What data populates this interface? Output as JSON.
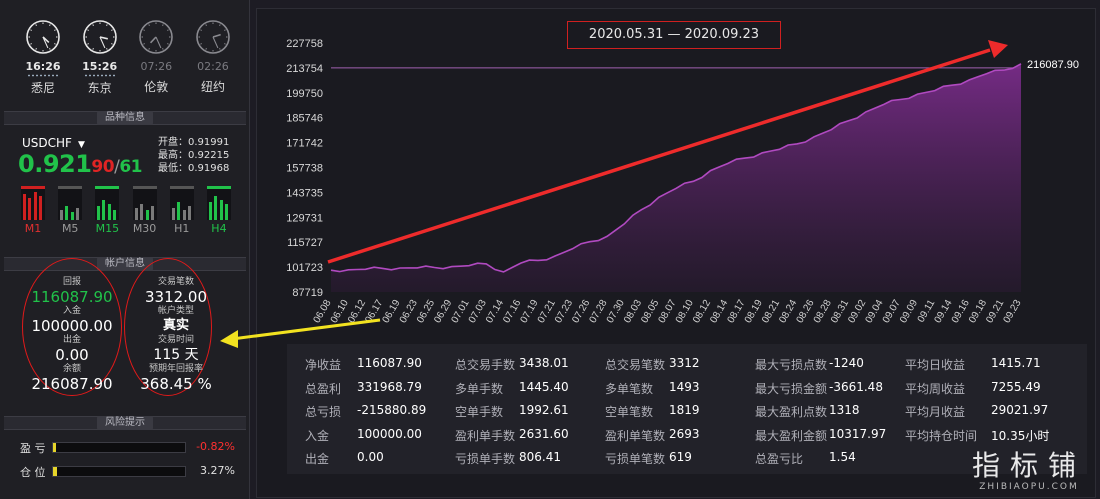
{
  "clocks": [
    {
      "time": "16:26",
      "city": "悉尼",
      "active": true,
      "hour": 4,
      "minute": 26
    },
    {
      "time": "15:26",
      "city": "东京",
      "active": true,
      "hour": 3,
      "minute": 26
    },
    {
      "time": "07:26",
      "city": "伦敦",
      "active": false,
      "hour": 7,
      "minute": 26
    },
    {
      "time": "02:26",
      "city": "纽约",
      "active": false,
      "hour": 2,
      "minute": 26
    }
  ],
  "instrument": {
    "section_title": "品种信息",
    "symbol": "USDCHF",
    "price_main": "0.921",
    "price_red": "90",
    "price_slash": "/",
    "price_green": "61",
    "open": "开盘：0.91991",
    "high": "最高：0.92215",
    "low": "最低：0.91968",
    "timeframes": [
      "M1",
      "M5",
      "M15",
      "M30",
      "H1",
      "H4"
    ]
  },
  "account": {
    "section_title": "帐户信息",
    "return_label": "回报",
    "return_value": "116087.90",
    "deposit_label": "入金",
    "deposit_value": "100000.00",
    "withdraw_label": "出金",
    "withdraw_value": "0.00",
    "balance_label": "余额",
    "balance_value": "216087.90",
    "trades_label": "交易笔数",
    "trades_value": "3312.00",
    "type_label": "帐户类型",
    "type_value": "真实",
    "time_label": "交易时间",
    "time_value": "115 天",
    "annual_label": "预期年回报率",
    "annual_value": "368.45 %"
  },
  "risk": {
    "section_title": "风险提示",
    "rows": [
      {
        "label": "盈 亏",
        "value": "-0.82%",
        "fill": 0.01,
        "color": "#ff3030"
      },
      {
        "label": "仓 位",
        "value": "3.27%",
        "fill": 0.033,
        "color": "#e0e0e0"
      }
    ]
  },
  "main": {
    "date_range": "2020.05.31 — 2020.09.23",
    "last_value_label": "216087.90",
    "stats": [
      [
        {
          "k": "净收益",
          "v": "116087.90"
        },
        {
          "k": "总盈利",
          "v": "331968.79"
        },
        {
          "k": "总亏损",
          "v": "-215880.89"
        },
        {
          "k": "入金",
          "v": "100000.00"
        },
        {
          "k": "出金",
          "v": "0.00"
        }
      ],
      [
        {
          "k": "总交易手数",
          "v": "3438.01"
        },
        {
          "k": "多单手数",
          "v": "1445.40"
        },
        {
          "k": "空单手数",
          "v": "1992.61"
        },
        {
          "k": "盈利单手数",
          "v": "2631.60"
        },
        {
          "k": "亏损单手数",
          "v": "806.41"
        }
      ],
      [
        {
          "k": "总交易笔数",
          "v": "3312"
        },
        {
          "k": "多单笔数",
          "v": "1493"
        },
        {
          "k": "空单笔数",
          "v": "1819"
        },
        {
          "k": "盈利单笔数",
          "v": "2693"
        },
        {
          "k": "亏损单笔数",
          "v": "619"
        }
      ],
      [
        {
          "k": "最大亏损点数",
          "v": "-1240"
        },
        {
          "k": "最大亏损金额",
          "v": "-3661.48"
        },
        {
          "k": "最大盈利点数",
          "v": "1318"
        },
        {
          "k": "最大盈利金额",
          "v": "10317.97"
        },
        {
          "k": "总盈亏比",
          "v": "1.54"
        }
      ],
      [
        {
          "k": "平均日收益",
          "v": "1415.71"
        },
        {
          "k": "平均周收益",
          "v": "7255.49"
        },
        {
          "k": "平均月收益",
          "v": "29021.97"
        },
        {
          "k": "平均持仓时间",
          "v": "10.35小时"
        }
      ]
    ]
  },
  "watermark": {
    "cn": "指标铺",
    "en": "ZHIBIAOPU.COM"
  },
  "chart_data": {
    "type": "area",
    "title": "",
    "xlabel": "",
    "ylabel": "",
    "ylim": [
      87719,
      227758
    ],
    "yticks": [
      87719,
      101723,
      115727,
      129731,
      143735,
      157738,
      171742,
      185746,
      199750,
      213754,
      227758
    ],
    "reference_line": 213754,
    "categories": [
      "06.08",
      "06.10",
      "06.12",
      "06.17",
      "06.19",
      "06.23",
      "06.25",
      "06.29",
      "07.01",
      "07.03",
      "07.14",
      "07.16",
      "07.19",
      "07.21",
      "07.23",
      "07.26",
      "07.28",
      "07.30",
      "08.03",
      "08.05",
      "08.07",
      "08.10",
      "08.12",
      "08.14",
      "08.17",
      "08.19",
      "08.21",
      "08.24",
      "08.26",
      "08.28",
      "08.31",
      "09.02",
      "09.04",
      "09.07",
      "09.09",
      "09.11",
      "09.14",
      "09.16",
      "09.18",
      "09.21",
      "09.23"
    ],
    "values": [
      100000,
      100200,
      100500,
      101000,
      101200,
      101300,
      101500,
      102000,
      102500,
      103500,
      99000,
      104000,
      105500,
      108000,
      112000,
      116000,
      119000,
      126000,
      134000,
      141000,
      146000,
      150000,
      156000,
      160000,
      163000,
      166000,
      168000,
      171000,
      175000,
      179000,
      184000,
      189000,
      193000,
      196000,
      199000,
      201000,
      204000,
      207000,
      210500,
      212500,
      216087.9
    ],
    "colors": {
      "line": "#b04ac0",
      "fill_top": "#7a2c8a",
      "fill_bottom": "#2a1a32",
      "ref": "#a060b0"
    }
  }
}
